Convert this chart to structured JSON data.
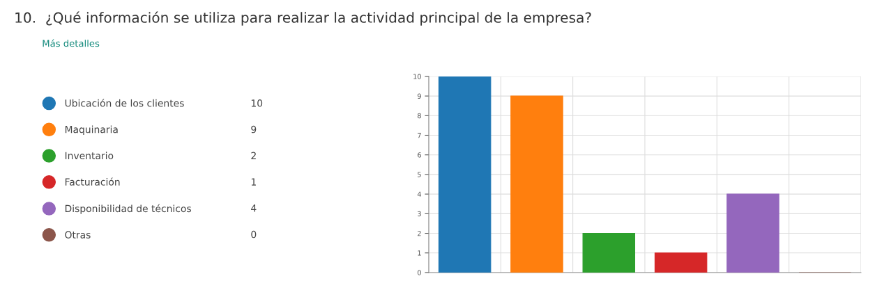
{
  "chart_data": {
    "type": "bar",
    "title": "10.  ¿Qué información se utiliza para realizar la actividad principal de la empresa?",
    "subtitle": "Más detalles",
    "categories": [
      null,
      null,
      null,
      null,
      null,
      null
    ],
    "series": [
      {
        "name": "Ubicación de los clientes",
        "color": "#1f77b4",
        "values": [
          10,
          null,
          null,
          null,
          null,
          null
        ]
      },
      {
        "name": "Maquinaria",
        "color": "#ff7f0e",
        "values": [
          null,
          9,
          null,
          null,
          null,
          null
        ]
      },
      {
        "name": "Inventario",
        "color": "#2ca02c",
        "values": [
          null,
          null,
          2,
          null,
          null,
          null
        ]
      },
      {
        "name": "Facturación",
        "color": "#d62728",
        "values": [
          null,
          null,
          null,
          1,
          null,
          null
        ]
      },
      {
        "name": "Disponibilidad de técnicos",
        "color": "#9467bd",
        "values": [
          null,
          null,
          null,
          null,
          4,
          null
        ]
      },
      {
        "name": "Otras",
        "color": "#8c564b",
        "values": [
          null,
          null,
          null,
          null,
          null,
          0
        ]
      }
    ],
    "ylim": [
      0,
      10
    ],
    "yticks": [
      0,
      1,
      2,
      3,
      4,
      5,
      6,
      7,
      8,
      9,
      10
    ],
    "annotations": [
      "10",
      "9",
      "2",
      "1",
      "4",
      "0"
    ],
    "grid": true,
    "legend": "left",
    "marker": "circle",
    "tick_labels": "y"
  }
}
